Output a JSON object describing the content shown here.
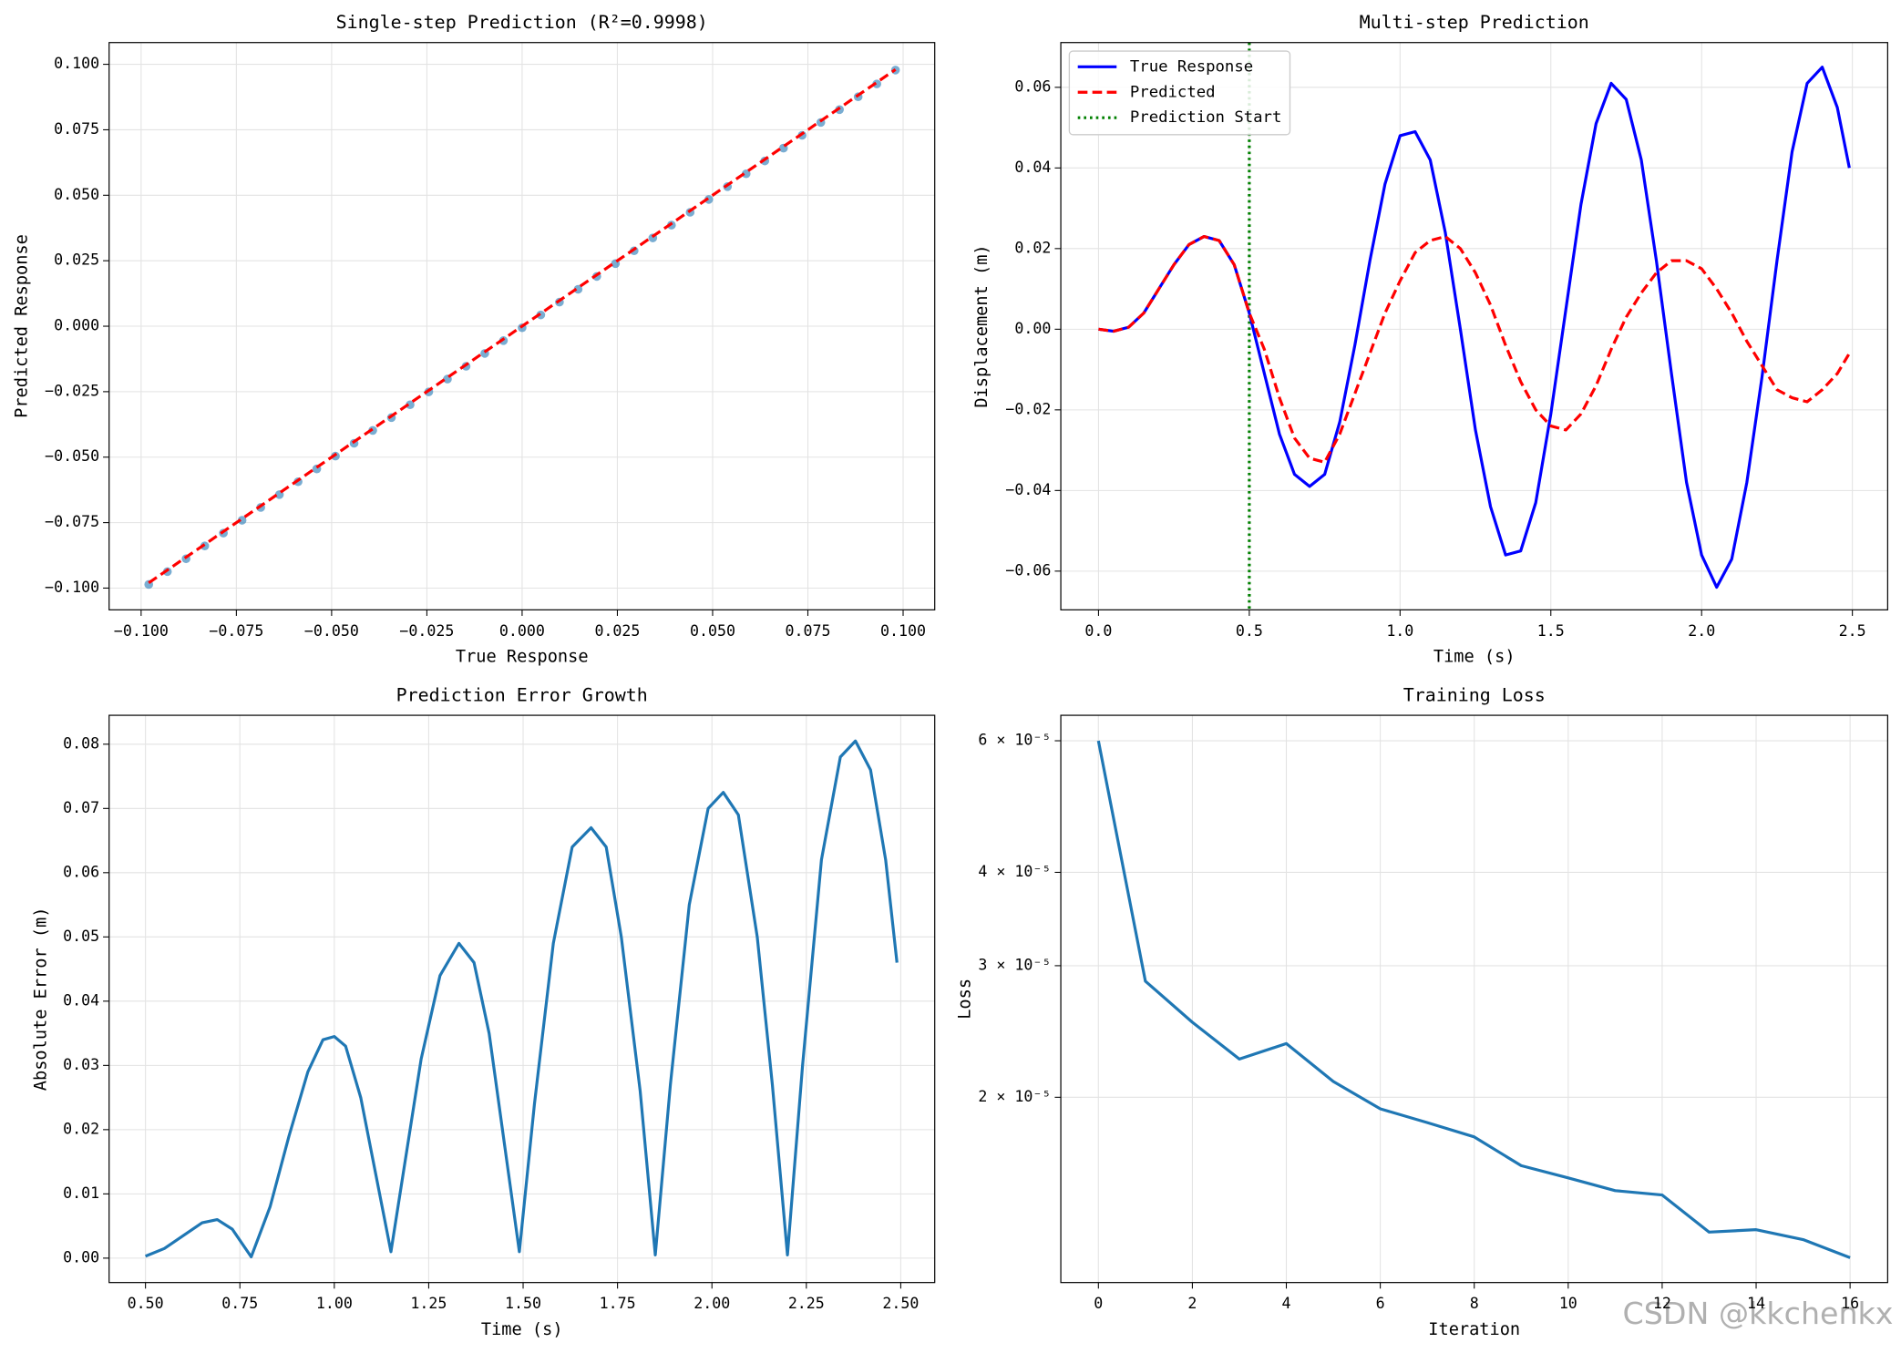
{
  "chart_data": [
    {
      "type": "scatter",
      "title": "Single-step Prediction (R²=0.9998)",
      "xlabel": "True Response",
      "ylabel": "Predicted Response",
      "x": [
        -0.098,
        -0.0931,
        -0.0882,
        -0.0833,
        -0.0784,
        -0.0735,
        -0.0686,
        -0.0637,
        -0.0588,
        -0.0539,
        -0.049,
        -0.0441,
        -0.0392,
        -0.0343,
        -0.0294,
        -0.0245,
        -0.0196,
        -0.0147,
        -0.0098,
        -0.0049,
        0,
        0.0049,
        0.0098,
        0.0147,
        0.0196,
        0.0245,
        0.0294,
        0.0343,
        0.0392,
        0.0441,
        0.049,
        0.0539,
        0.0588,
        0.0637,
        0.0686,
        0.0735,
        0.0784,
        0.0833,
        0.0882,
        0.0931,
        0.098
      ],
      "series": [
        {
          "color": "#1f77b4",
          "values": [
            -0.0986,
            -0.0937,
            -0.0888,
            -0.0839,
            -0.079,
            -0.0741,
            -0.0692,
            -0.0643,
            -0.0594,
            -0.0545,
            -0.0496,
            -0.0447,
            -0.0398,
            -0.0349,
            -0.03,
            -0.0251,
            -0.0202,
            -0.0153,
            -0.0104,
            -0.0055,
            -0.0006,
            0.0043,
            0.0092,
            0.0141,
            0.019,
            0.0239,
            0.0288,
            0.0337,
            0.0386,
            0.0435,
            0.0484,
            0.0533,
            0.0582,
            0.0631,
            0.068,
            0.0729,
            0.0778,
            0.0827,
            0.0876,
            0.0925,
            0.0978
          ]
        }
      ],
      "lines": [
        {
          "color": "#ff0000",
          "style": "dashed",
          "x": [
            -0.098,
            0.098
          ],
          "values": [
            -0.098,
            0.098
          ]
        }
      ],
      "xlim": [
        -0.1084,
        0.1083
      ],
      "ylim": [
        -0.1083,
        0.1083
      ],
      "xticks": [
        {
          "value": -0.1,
          "label": "−0.100"
        },
        {
          "value": -0.075,
          "label": "−0.075"
        },
        {
          "value": -0.05,
          "label": "−0.050"
        },
        {
          "value": -0.025,
          "label": "−0.025"
        },
        {
          "value": 0,
          "label": "0.000"
        },
        0.025,
        {
          "value": 0.05,
          "label": "0.050"
        },
        0.075,
        {
          "value": 0.1,
          "label": "0.100"
        }
      ],
      "yticks": [
        {
          "value": -0.1,
          "label": "−0.100"
        },
        {
          "value": -0.075,
          "label": "−0.075"
        },
        {
          "value": -0.05,
          "label": "−0.050"
        },
        {
          "value": -0.025,
          "label": "−0.025"
        },
        {
          "value": 0,
          "label": "0.000"
        },
        0.025,
        {
          "value": 0.05,
          "label": "0.050"
        },
        0.075,
        {
          "value": 0.1,
          "label": "0.100"
        }
      ],
      "grid": true
    },
    {
      "type": "line",
      "title": "Multi-step Prediction",
      "xlabel": "Time (s)",
      "ylabel": "Displacement (m)",
      "x": [
        0,
        0.05,
        0.1,
        0.15,
        0.2,
        0.25,
        0.3,
        0.35,
        0.4,
        0.45,
        0.5,
        0.55,
        0.6,
        0.65,
        0.7,
        0.75,
        0.8,
        0.85,
        0.9,
        0.95,
        1,
        1.05,
        1.1,
        1.15,
        1.2,
        1.25,
        1.3,
        1.35,
        1.4,
        1.45,
        1.5,
        1.55,
        1.6,
        1.65,
        1.7,
        1.75,
        1.8,
        1.85,
        1.9,
        1.95,
        2,
        2.05,
        2.1,
        2.15,
        2.2,
        2.25,
        2.3,
        2.35,
        2.4,
        2.45,
        2.49
      ],
      "series": [
        {
          "name": "True Response",
          "color": "#0000ff",
          "style": "solid",
          "values": [
            0,
            -0.0005,
            0.0005,
            0.004,
            0.01,
            0.016,
            0.021,
            0.023,
            0.022,
            0.016,
            0.004,
            -0.011,
            -0.026,
            -0.036,
            -0.039,
            -0.036,
            -0.023,
            -0.004,
            0.017,
            0.036,
            0.048,
            0.049,
            0.042,
            0.024,
            0,
            -0.025,
            -0.044,
            -0.056,
            -0.055,
            -0.043,
            -0.021,
            0.005,
            0.031,
            0.051,
            0.061,
            0.057,
            0.042,
            0.017,
            -0.011,
            -0.038,
            -0.056,
            -0.064,
            -0.057,
            -0.038,
            -0.012,
            0.017,
            0.044,
            0.061,
            0.065,
            0.055,
            0.04
          ]
        },
        {
          "name": "Predicted",
          "color": "#ff0000",
          "style": "dashed",
          "values": [
            0,
            -0.0005,
            0.0005,
            0.004,
            0.01,
            0.016,
            0.021,
            0.023,
            0.022,
            0.016,
            0.004,
            -0.005,
            -0.017,
            -0.027,
            -0.032,
            -0.033,
            -0.026,
            -0.016,
            -0.006,
            0.004,
            0.012,
            0.019,
            0.022,
            0.023,
            0.02,
            0.014,
            0.006,
            -0.004,
            -0.013,
            -0.02,
            -0.024,
            -0.025,
            -0.021,
            -0.014,
            -0.005,
            0.003,
            0.009,
            0.014,
            0.017,
            0.017,
            0.015,
            0.01,
            0.004,
            -0.003,
            -0.009,
            -0.015,
            -0.017,
            -0.018,
            -0.015,
            -0.011,
            -0.006
          ]
        }
      ],
      "vlines": [
        {
          "name": "Prediction Start",
          "color": "#008000",
          "style": "dotted",
          "x": 0.5
        }
      ],
      "legend": "upper left",
      "xlim": [
        -0.125,
        2.617
      ],
      "ylim": [
        -0.0696,
        0.0711
      ],
      "xticks": [
        {
          "value": 0,
          "label": "0.0"
        },
        0.5,
        {
          "value": 1,
          "label": "1.0"
        },
        1.5,
        {
          "value": 2,
          "label": "2.0"
        },
        2.5
      ],
      "yticks": [
        {
          "value": -0.06,
          "label": "−0.06"
        },
        {
          "value": -0.04,
          "label": "−0.04"
        },
        {
          "value": -0.02,
          "label": "−0.02"
        },
        {
          "value": 0,
          "label": "0.00"
        },
        0.02,
        0.04,
        0.06
      ],
      "grid": true
    },
    {
      "type": "line",
      "title": "Prediction Error Growth",
      "xlabel": "Time (s)",
      "ylabel": "Absolute Error (m)",
      "x": [
        0.5,
        0.55,
        0.6,
        0.65,
        0.69,
        0.73,
        0.78,
        0.83,
        0.88,
        0.93,
        0.97,
        1,
        1.03,
        1.07,
        1.11,
        1.15,
        1.19,
        1.23,
        1.28,
        1.33,
        1.37,
        1.41,
        1.45,
        1.49,
        1.53,
        1.58,
        1.63,
        1.68,
        1.72,
        1.76,
        1.81,
        1.85,
        1.89,
        1.94,
        1.99,
        2.03,
        2.07,
        2.12,
        2.16,
        2.2,
        2.24,
        2.29,
        2.34,
        2.38,
        2.42,
        2.46,
        2.49
      ],
      "series": [
        {
          "color": "#1f77b4",
          "style": "solid",
          "values": [
            0.0003,
            0.0015,
            0.0035,
            0.0055,
            0.006,
            0.0045,
            0.0002,
            0.008,
            0.019,
            0.029,
            0.034,
            0.0345,
            0.033,
            0.025,
            0.013,
            0.001,
            0.016,
            0.031,
            0.044,
            0.049,
            0.046,
            0.035,
            0.018,
            0.001,
            0.024,
            0.049,
            0.064,
            0.067,
            0.064,
            0.05,
            0.026,
            0.0005,
            0.027,
            0.055,
            0.07,
            0.0725,
            0.069,
            0.05,
            0.027,
            0.0005,
            0.03,
            0.062,
            0.078,
            0.0805,
            0.076,
            0.062,
            0.046
          ]
        }
      ],
      "xlim": [
        0.4037,
        2.59
      ],
      "ylim": [
        -0.0038,
        0.0845
      ],
      "xticks": [
        {
          "value": 0.5,
          "label": "0.50"
        },
        0.75,
        {
          "value": 1,
          "label": "1.00"
        },
        1.25,
        {
          "value": 1.5,
          "label": "1.50"
        },
        1.75,
        {
          "value": 2,
          "label": "2.00"
        },
        2.25,
        {
          "value": 2.5,
          "label": "2.50"
        }
      ],
      "yticks": [
        {
          "value": 0,
          "label": "0.00"
        },
        0.01,
        0.02,
        0.03,
        0.04,
        0.05,
        0.06,
        0.07,
        0.08
      ],
      "grid": true
    },
    {
      "type": "line",
      "title": "Training Loss",
      "xlabel": "Iteration",
      "ylabel": "Loss",
      "log_y": true,
      "x": [
        0,
        1,
        2,
        3,
        4,
        5,
        6,
        7,
        8,
        9,
        10,
        11,
        12,
        13,
        14,
        15,
        16
      ],
      "series": [
        {
          "color": "#1f77b4",
          "style": "solid",
          "values": [
            6e-05,
            2.86e-05,
            2.52e-05,
            2.25e-05,
            2.36e-05,
            2.1e-05,
            1.93e-05,
            1.85e-05,
            1.77e-05,
            1.62e-05,
            1.56e-05,
            1.5e-05,
            1.48e-05,
            1.32e-05,
            1.33e-05,
            1.29e-05,
            1.22e-05
          ]
        }
      ],
      "xlim": [
        -0.8,
        16.8
      ],
      "ylim": [
        1.13e-05,
        6.49e-05
      ],
      "xticks": [
        0,
        2,
        4,
        6,
        8,
        10,
        12,
        14,
        16
      ],
      "yticks": [
        {
          "value": 2e-05,
          "label": "2 × 10⁻⁵"
        },
        {
          "value": 3e-05,
          "label": "3 × 10⁻⁵"
        },
        {
          "value": 4e-05,
          "label": "4 × 10⁻⁵"
        },
        {
          "value": 6e-05,
          "label": "6 × 10⁻⁵"
        }
      ],
      "grid": true
    }
  ],
  "watermark": "CSDN @kkchenkx"
}
